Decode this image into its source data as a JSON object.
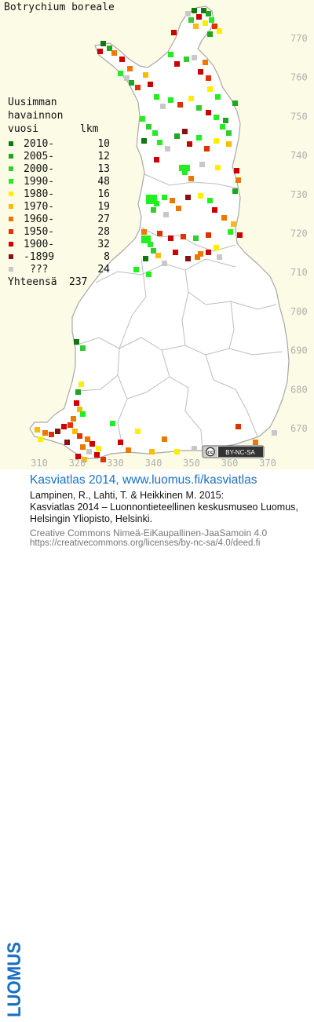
{
  "map": {
    "title": "Botrychium boreale",
    "y_ticks": [
      "770",
      "760",
      "750",
      "740",
      "730",
      "720",
      "710",
      "700",
      "690",
      "680",
      "670"
    ],
    "x_ticks": [
      "310",
      "320",
      "330",
      "340",
      "350",
      "360",
      "370"
    ],
    "license_badge": "BY-NC-SA",
    "legend": {
      "heading_lines": [
        "Uusimman",
        "havainnon"
      ],
      "col_year": "vuosi",
      "col_count": "lkm",
      "rows": [
        {
          "label": "2010-",
          "count": "10",
          "color": "#117711"
        },
        {
          "label": "2005-",
          "count": "12",
          "color": "#1fa51f"
        },
        {
          "label": "2000-",
          "count": "13",
          "color": "#33cc33"
        },
        {
          "label": "1990-",
          "count": "48",
          "color": "#22ee22"
        },
        {
          "label": "1980-",
          "count": "16",
          "color": "#ffee00"
        },
        {
          "label": "1970-",
          "count": "19",
          "color": "#ffbb00"
        },
        {
          "label": "1960-",
          "count": "27",
          "color": "#ee7700"
        },
        {
          "label": "1950-",
          "count": "28",
          "color": "#dd3300"
        },
        {
          "label": "1900-",
          "count": "32",
          "color": "#cc0000"
        },
        {
          "label": "-1899",
          "count": "8",
          "color": "#881111"
        },
        {
          "label": "???",
          "count": "24",
          "color": "#c8c8c8"
        }
      ],
      "total_label": "Yhteensä",
      "total_count": "237"
    }
  },
  "footer": {
    "logo_text": "LUOMUS",
    "title": "Kasviatlas 2014, www.luomus.fi/kasviatlas",
    "citation_1": "Lampinen, R., Lahti, T. & Heikkinen M. 2015:",
    "citation_2": "Kasviatlas 2014 – Luonnontieteellinen keskusmuseo Luomus,",
    "citation_3": "Helsingin Yliopisto, Helsinki.",
    "license_1": "Creative Commons Nimeä-EiKaupallinen-JaaSamoin 4.0",
    "license_2": "https://creativecommons.org/licenses/by-nc-sa/4.0/deed.fi"
  },
  "colors": {
    "background": "#fbfbe6",
    "land": "#ffffff",
    "border": "#a8a8a8",
    "footer_blue": "#1a6fc4",
    "footer_gray": "#777777"
  }
}
